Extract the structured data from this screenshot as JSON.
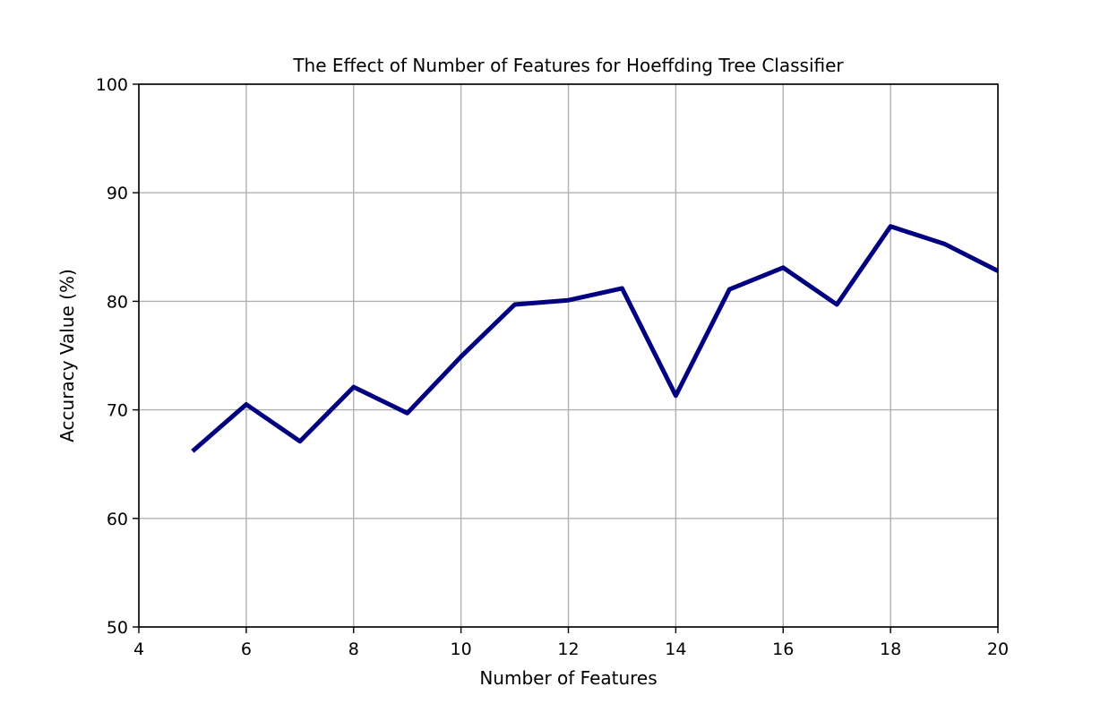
{
  "chart_data": {
    "type": "line",
    "title": "The Effect of Number of Features for Hoeffding Tree Classifier",
    "xlabel": "Number of Features",
    "ylabel": "Accuracy Value (%)",
    "xlim": [
      4,
      20
    ],
    "ylim": [
      50,
      100
    ],
    "xticks": [
      4,
      6,
      8,
      10,
      12,
      14,
      16,
      18,
      20
    ],
    "yticks": [
      50,
      60,
      70,
      80,
      90,
      100
    ],
    "grid": true,
    "series": [
      {
        "color": "#000080",
        "x": [
          5,
          6,
          7,
          8,
          9,
          10,
          11,
          12,
          13,
          14,
          15,
          16,
          17,
          18,
          19,
          20
        ],
        "y": [
          66.2,
          70.5,
          67.1,
          72.1,
          69.7,
          74.9,
          79.7,
          80.1,
          81.2,
          71.3,
          81.1,
          83.1,
          79.7,
          86.9,
          85.3,
          82.8
        ]
      }
    ]
  }
}
